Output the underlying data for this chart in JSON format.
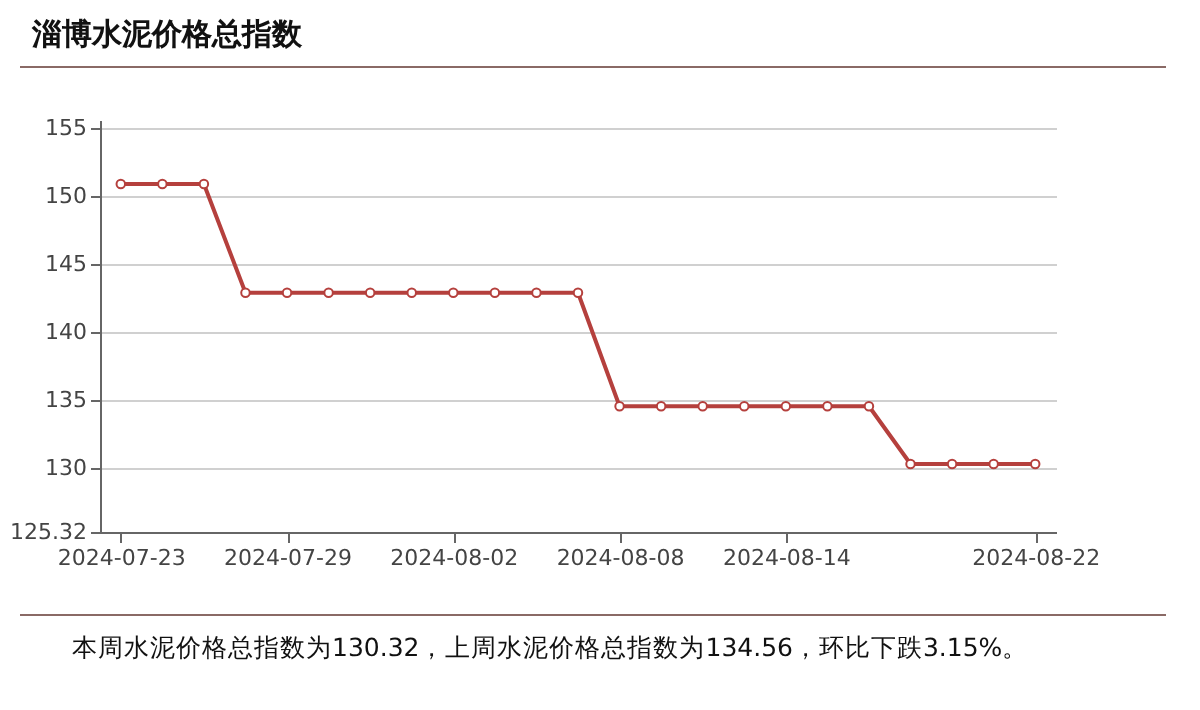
{
  "chart_data": {
    "type": "line",
    "title": "淄博水泥价格总指数",
    "categories": [
      "2024-07-23",
      null,
      null,
      null,
      "2024-07-29",
      null,
      null,
      null,
      "2024-08-02",
      null,
      null,
      null,
      "2024-08-08",
      null,
      null,
      null,
      "2024-08-14",
      null,
      null,
      null,
      null,
      null,
      "2024-08-22"
    ],
    "series": [
      {
        "color": "#b5403d",
        "values": [
          150.9,
          150.9,
          150.9,
          142.9,
          142.9,
          142.9,
          142.9,
          142.9,
          142.9,
          142.9,
          142.9,
          142.9,
          134.56,
          134.56,
          134.56,
          134.56,
          134.56,
          134.56,
          134.56,
          130.32,
          130.32,
          130.32,
          130.32
        ]
      }
    ],
    "ylim": [
      125.32,
      155.6
    ],
    "yticks": [
      {
        "value": 125.32,
        "label": "125.32"
      },
      130,
      135,
      140,
      145,
      150,
      155
    ],
    "grid": "y",
    "marker": "circle",
    "line_style": "solid",
    "annotations": [
      "本周水泥价格总指数为130.32，上周水泥价格总指数为134.56，环比下跌3.15%。"
    ]
  }
}
